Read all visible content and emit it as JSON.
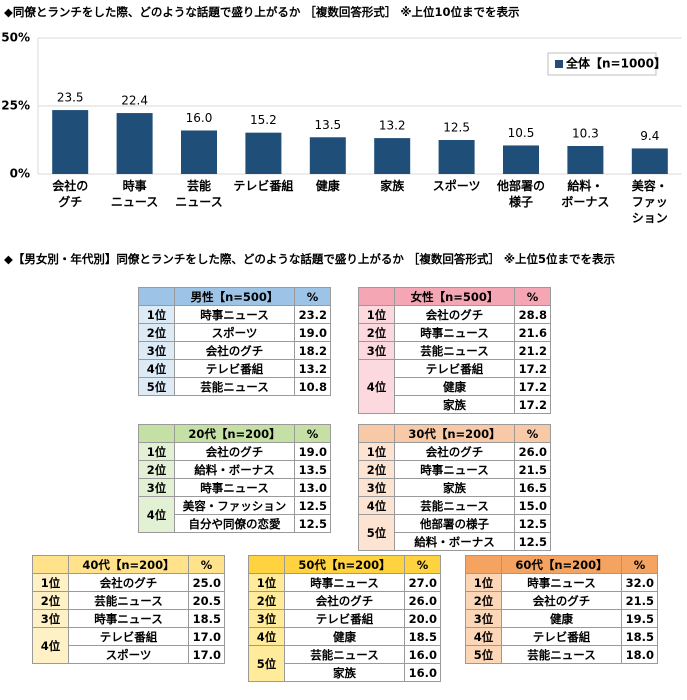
{
  "chart_data": {
    "type": "bar",
    "title": "◆同僚とランチをした際、どのような話題で盛り上がるか ［複数回答形式］ ※上位10位までを表示",
    "categories": [
      "会社の\nグチ",
      "時事\nニュース",
      "芸能\nニュース",
      "テレビ番組",
      "健康",
      "家族",
      "スポーツ",
      "他部署の\n様子",
      "給料・\nボーナス",
      "美容・\nファッ\nション"
    ],
    "series": [
      {
        "name": "全体【n=1000】",
        "color": "#1f4e79",
        "values": [
          23.5,
          22.4,
          16.0,
          15.2,
          13.5,
          13.2,
          12.5,
          10.5,
          10.3,
          9.4
        ],
        "value_labels": [
          "23.5",
          "22.4",
          "16.0",
          "15.2",
          "13.5",
          "13.2",
          "12.5",
          "10.5",
          "10.3",
          "9.4"
        ]
      }
    ],
    "ylim": [
      0,
      50
    ],
    "yticks": [
      {
        "value": 0,
        "label": "0%"
      },
      {
        "value": 25,
        "label": "25%"
      },
      {
        "value": 50,
        "label": "50%"
      }
    ],
    "grid": true,
    "legend": "upper right"
  },
  "section_title": "◆【男女別・年代別】同僚とランチをした際、どのような話題で盛り上がるか ［複数回答形式］ ※上位5位までを表示",
  "tables": [
    {
      "header": "男性【n=500】",
      "unit": "%",
      "header_color": "#9dc3e6",
      "rank_color": "#ddebf7",
      "groups": [
        {
          "rank": "1位",
          "rows": [
            [
              "時事ニュース",
              "23.2"
            ]
          ]
        },
        {
          "rank": "2位",
          "rows": [
            [
              "スポーツ",
              "19.0"
            ]
          ]
        },
        {
          "rank": "3位",
          "rows": [
            [
              "会社のグチ",
              "18.2"
            ]
          ]
        },
        {
          "rank": "4位",
          "rows": [
            [
              "テレビ番組",
              "13.2"
            ]
          ]
        },
        {
          "rank": "5位",
          "rows": [
            [
              "芸能ニュース",
              "10.8"
            ]
          ]
        }
      ]
    },
    {
      "header": "女性【n=500】",
      "unit": "%",
      "header_color": "#f4a6b4",
      "rank_color": "#fbd9df",
      "groups": [
        {
          "rank": "1位",
          "rows": [
            [
              "会社のグチ",
              "28.8"
            ]
          ]
        },
        {
          "rank": "2位",
          "rows": [
            [
              "時事ニュース",
              "21.6"
            ]
          ]
        },
        {
          "rank": "3位",
          "rows": [
            [
              "芸能ニュース",
              "21.2"
            ]
          ]
        },
        {
          "rank": "4位",
          "rows": [
            [
              "テレビ番組",
              "17.2"
            ],
            [
              "健康",
              "17.2"
            ],
            [
              "家族",
              "17.2"
            ]
          ]
        }
      ]
    },
    {
      "header": "20代【n=200】",
      "unit": "%",
      "header_color": "#c5e0a5",
      "rank_color": "#e2f0d4",
      "groups": [
        {
          "rank": "1位",
          "rows": [
            [
              "会社のグチ",
              "19.0"
            ]
          ]
        },
        {
          "rank": "2位",
          "rows": [
            [
              "給料・ボーナス",
              "13.5"
            ]
          ]
        },
        {
          "rank": "3位",
          "rows": [
            [
              "時事ニュース",
              "13.0"
            ]
          ]
        },
        {
          "rank": "4位",
          "rows": [
            [
              "美容・ファッション",
              "12.5"
            ],
            [
              "自分や同僚の恋愛",
              "12.5"
            ]
          ]
        }
      ]
    },
    {
      "header": "30代【n=200】",
      "unit": "%",
      "header_color": "#f8c9a6",
      "rank_color": "#fce3d2",
      "groups": [
        {
          "rank": "1位",
          "rows": [
            [
              "会社のグチ",
              "26.0"
            ]
          ]
        },
        {
          "rank": "2位",
          "rows": [
            [
              "時事ニュース",
              "21.5"
            ]
          ]
        },
        {
          "rank": "3位",
          "rows": [
            [
              "家族",
              "16.5"
            ]
          ]
        },
        {
          "rank": "4位",
          "rows": [
            [
              "芸能ニュース",
              "15.0"
            ]
          ]
        },
        {
          "rank": "5位",
          "rows": [
            [
              "他部署の様子",
              "12.5"
            ],
            [
              "給料・ボーナス",
              "12.5"
            ]
          ]
        }
      ]
    },
    {
      "header": "40代【n=200】",
      "unit": "%",
      "header_color": "#ffe28a",
      "rank_color": "#fff1c6",
      "groups": [
        {
          "rank": "1位",
          "rows": [
            [
              "会社のグチ",
              "25.0"
            ]
          ]
        },
        {
          "rank": "2位",
          "rows": [
            [
              "芸能ニュース",
              "20.5"
            ]
          ]
        },
        {
          "rank": "3位",
          "rows": [
            [
              "時事ニュース",
              "18.5"
            ]
          ]
        },
        {
          "rank": "4位",
          "rows": [
            [
              "テレビ番組",
              "17.0"
            ],
            [
              "スポーツ",
              "17.0"
            ]
          ]
        }
      ]
    },
    {
      "header": "50代【n=200】",
      "unit": "%",
      "header_color": "#ffd23f",
      "rank_color": "#ffeb99",
      "groups": [
        {
          "rank": "1位",
          "rows": [
            [
              "時事ニュース",
              "27.0"
            ]
          ]
        },
        {
          "rank": "2位",
          "rows": [
            [
              "会社のグチ",
              "26.0"
            ]
          ]
        },
        {
          "rank": "3位",
          "rows": [
            [
              "テレビ番組",
              "20.0"
            ]
          ]
        },
        {
          "rank": "4位",
          "rows": [
            [
              "健康",
              "18.5"
            ]
          ]
        },
        {
          "rank": "5位",
          "rows": [
            [
              "芸能ニュース",
              "16.0"
            ],
            [
              "家族",
              "16.0"
            ]
          ]
        }
      ]
    },
    {
      "header": "60代【n=200】",
      "unit": "%",
      "header_color": "#f4a460",
      "rank_color": "#fbd7b8",
      "groups": [
        {
          "rank": "1位",
          "rows": [
            [
              "時事ニュース",
              "32.0"
            ]
          ]
        },
        {
          "rank": "2位",
          "rows": [
            [
              "会社のグチ",
              "21.5"
            ]
          ]
        },
        {
          "rank": "3位",
          "rows": [
            [
              "健康",
              "19.5"
            ]
          ]
        },
        {
          "rank": "4位",
          "rows": [
            [
              "テレビ番組",
              "18.5"
            ]
          ]
        },
        {
          "rank": "5位",
          "rows": [
            [
              "芸能ニュース",
              "18.0"
            ]
          ]
        }
      ]
    }
  ]
}
